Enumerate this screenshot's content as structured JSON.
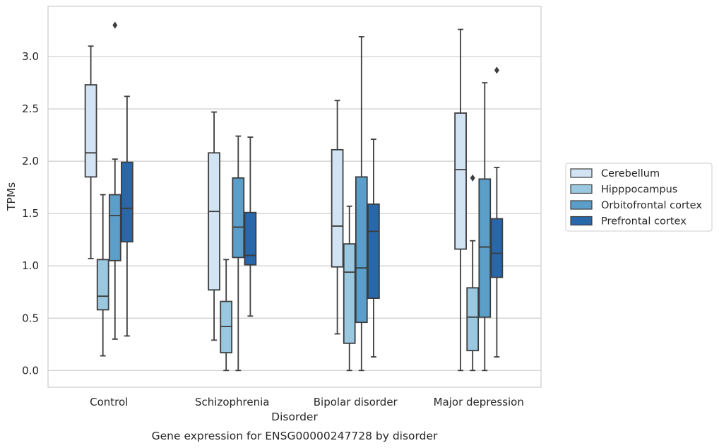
{
  "caption": "Gene expression for ENSG00000247728 by disorder",
  "chart_data": {
    "type": "box",
    "title": "",
    "xlabel": "Disorder",
    "ylabel": "TPMs",
    "categories": [
      "Control",
      "Schizophrenia",
      "Bipolar disorder",
      "Major depression"
    ],
    "yticks": [
      "0.0",
      "0.5",
      "1.0",
      "1.5",
      "2.0",
      "2.5",
      "3.0"
    ],
    "ylim": [
      -0.16,
      3.48
    ],
    "grid": "horizontal",
    "legend_position": "center-right",
    "series": [
      {
        "name": "Cerebellum",
        "color": "#d2e3f3",
        "boxes": [
          {
            "whislo": 1.07,
            "q1": 1.85,
            "med": 2.08,
            "q3": 2.73,
            "whishi": 3.1,
            "fliers": []
          },
          {
            "whislo": 0.29,
            "q1": 0.77,
            "med": 1.52,
            "q3": 2.08,
            "whishi": 2.47,
            "fliers": []
          },
          {
            "whislo": 0.35,
            "q1": 0.99,
            "med": 1.38,
            "q3": 2.11,
            "whishi": 2.58,
            "fliers": []
          },
          {
            "whislo": 0.0,
            "q1": 1.16,
            "med": 1.92,
            "q3": 2.46,
            "whishi": 3.26,
            "fliers": []
          }
        ]
      },
      {
        "name": "Hipppocampus",
        "color": "#9ac8e0",
        "boxes": [
          {
            "whislo": 0.14,
            "q1": 0.58,
            "med": 0.71,
            "q3": 1.06,
            "whishi": 1.68,
            "fliers": []
          },
          {
            "whislo": 0.0,
            "q1": 0.17,
            "med": 0.42,
            "q3": 0.66,
            "whishi": 1.06,
            "fliers": []
          },
          {
            "whislo": 0.0,
            "q1": 0.26,
            "med": 0.94,
            "q3": 1.21,
            "whishi": 1.57,
            "fliers": []
          },
          {
            "whislo": 0.0,
            "q1": 0.19,
            "med": 0.51,
            "q3": 0.79,
            "whishi": 1.24,
            "fliers": [
              1.84
            ]
          }
        ]
      },
      {
        "name": "Orbitofrontal cortex",
        "color": "#5a9ec9",
        "boxes": [
          {
            "whislo": 0.3,
            "q1": 1.05,
            "med": 1.48,
            "q3": 1.68,
            "whishi": 2.02,
            "fliers": [
              3.3
            ]
          },
          {
            "whislo": 0.0,
            "q1": 1.08,
            "med": 1.37,
            "q3": 1.84,
            "whishi": 2.24,
            "fliers": []
          },
          {
            "whislo": 0.0,
            "q1": 0.46,
            "med": 0.98,
            "q3": 1.85,
            "whishi": 3.19,
            "fliers": []
          },
          {
            "whislo": 0.0,
            "q1": 0.51,
            "med": 1.18,
            "q3": 1.83,
            "whishi": 2.75,
            "fliers": []
          }
        ]
      },
      {
        "name": "Prefrontal cortex",
        "color": "#2867aa",
        "boxes": [
          {
            "whislo": 0.33,
            "q1": 1.23,
            "med": 1.55,
            "q3": 1.99,
            "whishi": 2.62,
            "fliers": []
          },
          {
            "whislo": 0.52,
            "q1": 1.01,
            "med": 1.1,
            "q3": 1.51,
            "whishi": 2.23,
            "fliers": []
          },
          {
            "whislo": 0.13,
            "q1": 0.69,
            "med": 1.33,
            "q3": 1.59,
            "whishi": 2.21,
            "fliers": []
          },
          {
            "whislo": 0.13,
            "q1": 0.89,
            "med": 1.12,
            "q3": 1.45,
            "whishi": 1.94,
            "fliers": [
              2.87
            ]
          }
        ]
      }
    ]
  }
}
